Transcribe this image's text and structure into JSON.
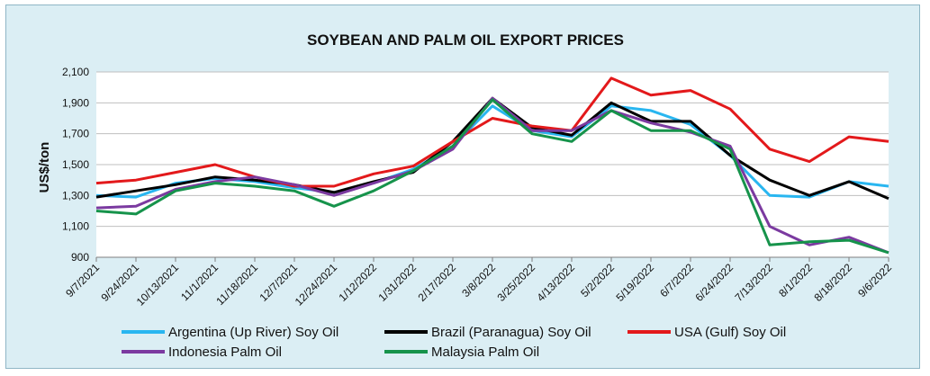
{
  "chart_data": {
    "type": "line",
    "title": "SOYBEAN AND PALM OIL EXPORT PRICES",
    "xlabel": "",
    "ylabel": "US$/ton",
    "ylim": [
      900,
      2100
    ],
    "yticks": [
      900,
      1100,
      1300,
      1500,
      1700,
      1900,
      2100
    ],
    "ytick_labels": [
      "900",
      "1,100",
      "1,300",
      "1,500",
      "1,700",
      "1,900",
      "2,100"
    ],
    "grid": true,
    "legend_position": "bottom",
    "categories": [
      "9/7/2021",
      "9/24/2021",
      "10/13/2021",
      "11/1/2021",
      "11/18/2021",
      "12/7/2021",
      "12/24/2021",
      "1/12/2022",
      "1/31/2022",
      "2/17/2022",
      "3/8/2022",
      "3/25/2022",
      "4/13/2022",
      "5/2/2022",
      "5/19/2022",
      "6/7/2022",
      "6/24/2022",
      "7/13/2022",
      "8/1/2022",
      "8/18/2022",
      "9/6/2022"
    ],
    "series": [
      {
        "name": "Argentina (Up River) Soy Oil",
        "color": "#29b6f0",
        "values": [
          1300,
          1290,
          1380,
          1410,
          1390,
          1350,
          1320,
          1380,
          1470,
          1620,
          1880,
          1720,
          1680,
          1880,
          1850,
          1760,
          1560,
          1300,
          1290,
          1390,
          1360
        ]
      },
      {
        "name": "Brazil (Paranagua) Soy Oil",
        "color": "#000000",
        "values": [
          1290,
          1330,
          1370,
          1420,
          1400,
          1370,
          1320,
          1390,
          1450,
          1650,
          1930,
          1740,
          1690,
          1900,
          1780,
          1780,
          1560,
          1400,
          1300,
          1390,
          1280
        ]
      },
      {
        "name": "USA (Gulf) Soy Oil",
        "color": "#e3191b",
        "values": [
          1380,
          1400,
          1450,
          1500,
          1420,
          1360,
          1360,
          1440,
          1490,
          1650,
          1800,
          1750,
          1720,
          2060,
          1950,
          1980,
          1860,
          1600,
          1520,
          1680,
          1650
        ]
      },
      {
        "name": "Indonesia Palm Oil",
        "color": "#7b3aa0",
        "values": [
          1220,
          1230,
          1340,
          1390,
          1420,
          1370,
          1300,
          1380,
          1460,
          1600,
          1930,
          1720,
          1720,
          1850,
          1770,
          1710,
          1620,
          1100,
          980,
          1030,
          930
        ]
      },
      {
        "name": "Malaysia Palm Oil",
        "color": "#16934b",
        "values": [
          1200,
          1180,
          1330,
          1380,
          1360,
          1330,
          1230,
          1330,
          1460,
          1620,
          1920,
          1700,
          1650,
          1850,
          1720,
          1720,
          1600,
          980,
          1000,
          1010,
          930
        ]
      }
    ]
  }
}
